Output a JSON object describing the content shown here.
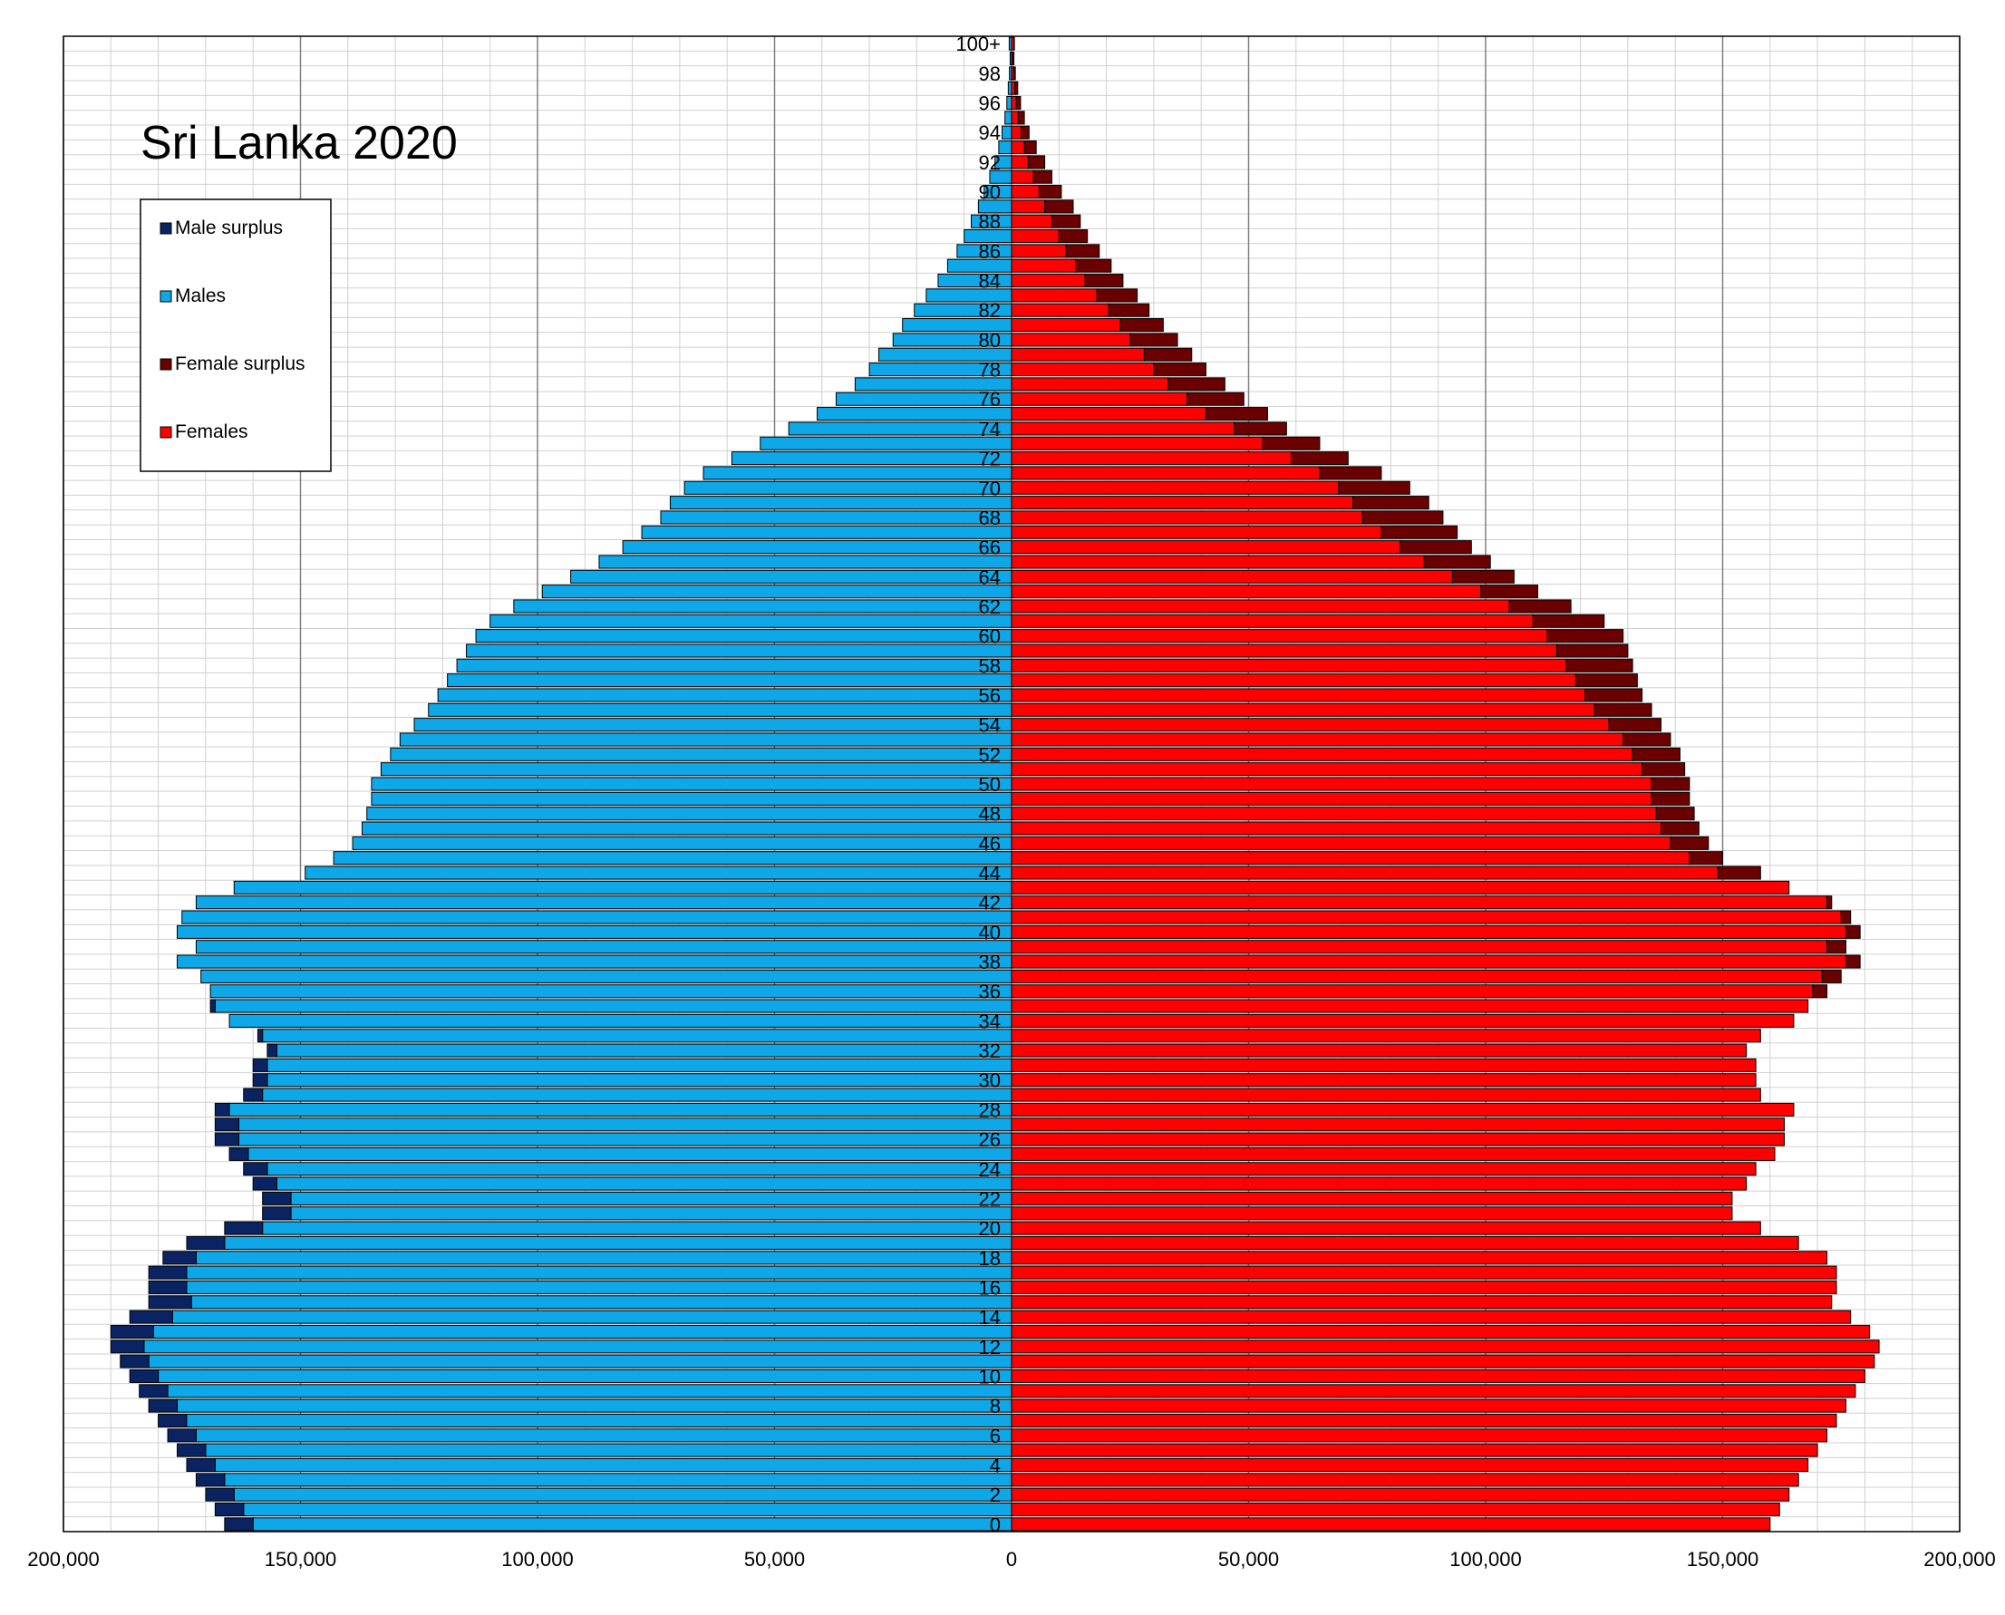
{
  "chart_data": {
    "type": "bar",
    "orientation": "horizontal",
    "layout": "population-pyramid",
    "title": "Sri Lanka 2020",
    "xlim": [
      -200000,
      200000
    ],
    "x_ticks": [
      -200000,
      -150000,
      -100000,
      -50000,
      0,
      50000,
      100000,
      150000,
      200000
    ],
    "x_tick_labels": [
      "200,000",
      "150,000",
      "100,000",
      "50,000",
      "0",
      "50,000",
      "100,000",
      "150,000",
      "200,000"
    ],
    "categories": [
      "0",
      "1",
      "2",
      "3",
      "4",
      "5",
      "6",
      "7",
      "8",
      "9",
      "10",
      "11",
      "12",
      "13",
      "14",
      "15",
      "16",
      "17",
      "18",
      "19",
      "20",
      "21",
      "22",
      "23",
      "24",
      "25",
      "26",
      "27",
      "28",
      "29",
      "30",
      "31",
      "32",
      "33",
      "34",
      "35",
      "36",
      "37",
      "38",
      "39",
      "40",
      "41",
      "42",
      "43",
      "44",
      "45",
      "46",
      "47",
      "48",
      "49",
      "50",
      "51",
      "52",
      "53",
      "54",
      "55",
      "56",
      "57",
      "58",
      "59",
      "60",
      "61",
      "62",
      "63",
      "64",
      "65",
      "66",
      "67",
      "68",
      "69",
      "70",
      "71",
      "72",
      "73",
      "74",
      "75",
      "76",
      "77",
      "78",
      "79",
      "80",
      "81",
      "82",
      "83",
      "84",
      "85",
      "86",
      "87",
      "88",
      "89",
      "90",
      "91",
      "92",
      "93",
      "94",
      "95",
      "96",
      "97",
      "98",
      "99",
      "100+"
    ],
    "category_tick_labels": [
      "0",
      "2",
      "4",
      "6",
      "8",
      "10",
      "12",
      "14",
      "16",
      "18",
      "20",
      "22",
      "24",
      "26",
      "28",
      "30",
      "32",
      "34",
      "36",
      "38",
      "40",
      "42",
      "44",
      "46",
      "48",
      "50",
      "52",
      "54",
      "56",
      "58",
      "60",
      "62",
      "64",
      "66",
      "68",
      "70",
      "72",
      "74",
      "76",
      "78",
      "80",
      "82",
      "84",
      "86",
      "88",
      "90",
      "92",
      "94",
      "96",
      "98",
      "100+"
    ],
    "series": [
      {
        "name": "Males",
        "values": [
          166000,
          168000,
          170000,
          172000,
          174000,
          176000,
          178000,
          180000,
          182000,
          184000,
          186000,
          188000,
          190000,
          190000,
          186000,
          182000,
          182000,
          182000,
          179000,
          174000,
          166000,
          158000,
          158000,
          160000,
          162000,
          165000,
          168000,
          168000,
          168000,
          162000,
          160000,
          160000,
          157000,
          159000,
          165000,
          169000,
          169000,
          171000,
          176000,
          172000,
          176000,
          175000,
          172000,
          164000,
          149000,
          143000,
          139000,
          137000,
          136000,
          135000,
          135000,
          133000,
          131000,
          129000,
          126000,
          123000,
          121000,
          119000,
          117000,
          115000,
          113000,
          110000,
          105000,
          99000,
          93000,
          87000,
          82000,
          78000,
          74000,
          72000,
          69000,
          65000,
          59000,
          53000,
          47000,
          41000,
          37000,
          33000,
          30000,
          28000,
          25000,
          23000,
          20500,
          18000,
          15500,
          13500,
          11500,
          10000,
          8500,
          7000,
          5800,
          4600,
          3500,
          2700,
          2000,
          1400,
          1000,
          700,
          450,
          300,
          500
        ]
      },
      {
        "name": "Females",
        "values": [
          160000,
          162000,
          164000,
          166000,
          168000,
          170000,
          172000,
          174000,
          176000,
          178000,
          180000,
          182000,
          183000,
          181000,
          177000,
          173000,
          174000,
          174000,
          172000,
          166000,
          158000,
          152000,
          152000,
          155000,
          157000,
          161000,
          163000,
          163000,
          165000,
          158000,
          157000,
          157000,
          155000,
          158000,
          165000,
          168000,
          172000,
          175000,
          179000,
          176000,
          179000,
          177000,
          173000,
          164000,
          158000,
          150000,
          147000,
          145000,
          144000,
          143000,
          143000,
          142000,
          141000,
          139000,
          137000,
          135000,
          133000,
          132000,
          131000,
          130000,
          129000,
          125000,
          118000,
          111000,
          106000,
          101000,
          97000,
          94000,
          91000,
          88000,
          84000,
          78000,
          71000,
          65000,
          58000,
          54000,
          49000,
          45000,
          41000,
          38000,
          35000,
          32000,
          29000,
          26500,
          23500,
          21000,
          18500,
          16000,
          14500,
          13000,
          10500,
          8500,
          7000,
          5200,
          3700,
          2700,
          1900,
          1300,
          800,
          500,
          600
        ]
      }
    ],
    "legend": {
      "placement": "top-left",
      "entries": [
        {
          "label": "Male surplus",
          "color": "#0a2463"
        },
        {
          "label": "Males",
          "color": "#0ea8e8"
        },
        {
          "label": "Female surplus",
          "color": "#6b0000"
        },
        {
          "label": "Females",
          "color": "#ff0000"
        }
      ]
    },
    "colors": {
      "males": "#0ea8e8",
      "male_surplus": "#0a2463",
      "females": "#ff0000",
      "female_surplus": "#6b0000",
      "gridline_minor": "#d0d0d0",
      "gridline_major": "#808080"
    },
    "grid": true
  }
}
